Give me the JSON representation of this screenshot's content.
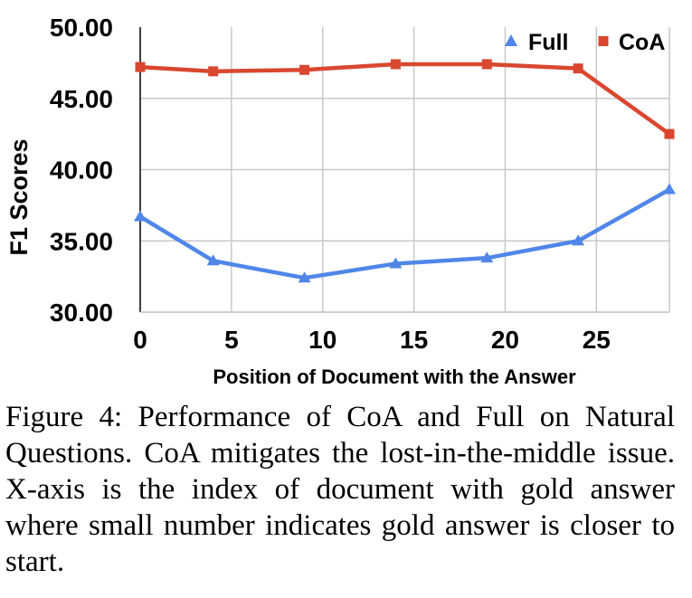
{
  "chart_data": {
    "type": "line",
    "title": "",
    "xlabel": "Position of Document with the Answer",
    "ylabel": "F1 Scores",
    "x": [
      0,
      4,
      9,
      14,
      19,
      24,
      29
    ],
    "xticks": [
      0,
      5,
      10,
      15,
      20,
      25
    ],
    "xlim": [
      0,
      29
    ],
    "ylim": [
      30,
      50
    ],
    "yticks": [
      "30.00",
      "35.00",
      "40.00",
      "45.00",
      "50.00"
    ],
    "grid": true,
    "legend": "top-right",
    "series": [
      {
        "name": "Full",
        "marker": "triangle",
        "color": "#4f86e8",
        "values": [
          36.7,
          33.6,
          32.4,
          33.4,
          33.8,
          35.0,
          38.6
        ]
      },
      {
        "name": "CoA",
        "marker": "square",
        "color": "#d9472f",
        "values": [
          47.2,
          46.9,
          47.0,
          47.4,
          47.4,
          47.1,
          42.5
        ]
      }
    ]
  },
  "caption": "Figure 4: Performance of CoA and Full on Natural Questions. CoA mitigates the lost-in-the-middle issue. X-axis is the index of document with gold answer where small number indicates gold answer is closer to start."
}
